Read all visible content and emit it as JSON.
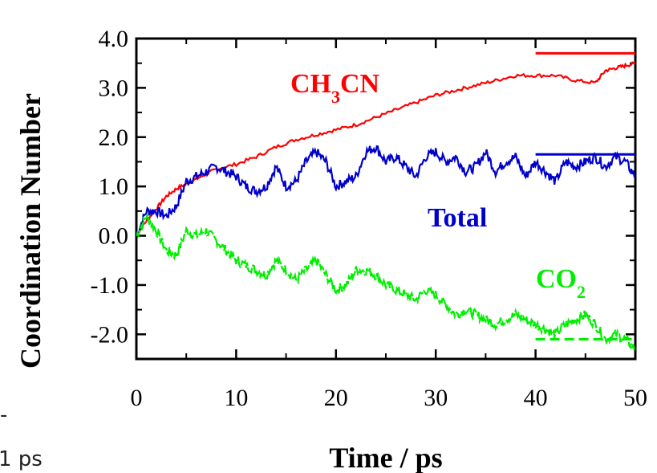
{
  "chart_data": {
    "type": "line",
    "title": "",
    "xlabel": "Time / ps",
    "ylabel": "Coordination Number",
    "xlim": [
      0,
      50
    ],
    "ylim": [
      -2.5,
      4.0
    ],
    "xticks": [
      "0",
      "10",
      "20",
      "30",
      "40",
      "50"
    ],
    "yticks": [
      "4.0",
      "3.0",
      "2.0",
      "1.0",
      "0.0",
      "-1.0",
      "-2.0"
    ],
    "grid": false,
    "series": [
      {
        "name": "CH3CN",
        "label_main": "CH",
        "label_sub": "3",
        "label_tail": "CN",
        "color": "#ff0000",
        "x": [
          0,
          1,
          2,
          3,
          4,
          5,
          6,
          7,
          8,
          10,
          12,
          14,
          16,
          18,
          20,
          22,
          24,
          26,
          28,
          30,
          32,
          34,
          36,
          38,
          40,
          42,
          44,
          46,
          47,
          48,
          49,
          50
        ],
        "y": [
          0.0,
          0.3,
          0.55,
          0.8,
          0.95,
          1.05,
          1.15,
          1.25,
          1.35,
          1.45,
          1.6,
          1.8,
          1.95,
          2.05,
          2.15,
          2.25,
          2.4,
          2.55,
          2.7,
          2.85,
          2.95,
          3.05,
          3.15,
          3.25,
          3.25,
          3.25,
          3.15,
          3.1,
          3.35,
          3.4,
          3.45,
          3.5
        ],
        "reference_value": 3.7,
        "reference_x": [
          40,
          50
        ]
      },
      {
        "name": "Total",
        "color": "#0000cc",
        "x": [
          0,
          1,
          2,
          3,
          4,
          5,
          6,
          7,
          8,
          9,
          10,
          11,
          12,
          13,
          14,
          15,
          16,
          17,
          18,
          19,
          20,
          21,
          22,
          23,
          24,
          25,
          26,
          27,
          28,
          29,
          30,
          31,
          32,
          33,
          34,
          35,
          36,
          37,
          38,
          39,
          40,
          41,
          42,
          43,
          44,
          45,
          46,
          47,
          48,
          49,
          50
        ],
        "y": [
          0.0,
          0.5,
          0.5,
          0.4,
          0.6,
          1.1,
          1.2,
          1.3,
          1.4,
          1.3,
          1.2,
          1.0,
          0.9,
          1.0,
          1.4,
          1.0,
          1.1,
          1.5,
          1.7,
          1.5,
          1.0,
          1.1,
          1.2,
          1.7,
          1.8,
          1.5,
          1.6,
          1.4,
          1.2,
          1.6,
          1.7,
          1.5,
          1.6,
          1.3,
          1.4,
          1.7,
          1.3,
          1.5,
          1.6,
          1.2,
          1.5,
          1.3,
          1.1,
          1.5,
          1.4,
          1.5,
          1.6,
          1.4,
          1.6,
          1.5,
          1.2
        ],
        "reference_value": 1.65,
        "reference_x": [
          40,
          50
        ]
      },
      {
        "name": "CO2",
        "label_main": "CO",
        "label_sub": "2",
        "label_tail": "",
        "color": "#00ee00",
        "x": [
          0,
          1,
          2,
          3,
          4,
          5,
          6,
          7,
          8,
          9,
          10,
          11,
          12,
          13,
          14,
          15,
          16,
          17,
          18,
          19,
          20,
          21,
          22,
          23,
          24,
          25,
          26,
          27,
          28,
          29,
          30,
          31,
          32,
          33,
          34,
          35,
          36,
          37,
          38,
          39,
          40,
          41,
          42,
          43,
          44,
          45,
          46,
          47,
          48,
          49,
          50
        ],
        "y": [
          0.0,
          0.4,
          0.1,
          -0.3,
          -0.4,
          0.1,
          0.0,
          0.1,
          -0.1,
          -0.3,
          -0.5,
          -0.6,
          -0.7,
          -0.8,
          -0.5,
          -0.7,
          -0.9,
          -0.7,
          -0.5,
          -0.8,
          -1.1,
          -1.0,
          -0.7,
          -0.7,
          -0.8,
          -1.0,
          -1.1,
          -1.2,
          -1.3,
          -1.1,
          -1.2,
          -1.4,
          -1.6,
          -1.5,
          -1.6,
          -1.7,
          -1.8,
          -1.7,
          -1.6,
          -1.7,
          -1.8,
          -1.9,
          -2.0,
          -1.8,
          -1.7,
          -1.6,
          -1.8,
          -2.1,
          -2.0,
          -2.1,
          -2.3
        ],
        "reference_value": -2.1,
        "reference_x": [
          40,
          50
        ]
      }
    ],
    "label_positions": {
      "CH3CN": "upper-middle",
      "Total": "right-middle",
      "CO2": "lower-right"
    }
  },
  "stray": {
    "top_mark": "-",
    "bottom_text": "1 ps"
  }
}
